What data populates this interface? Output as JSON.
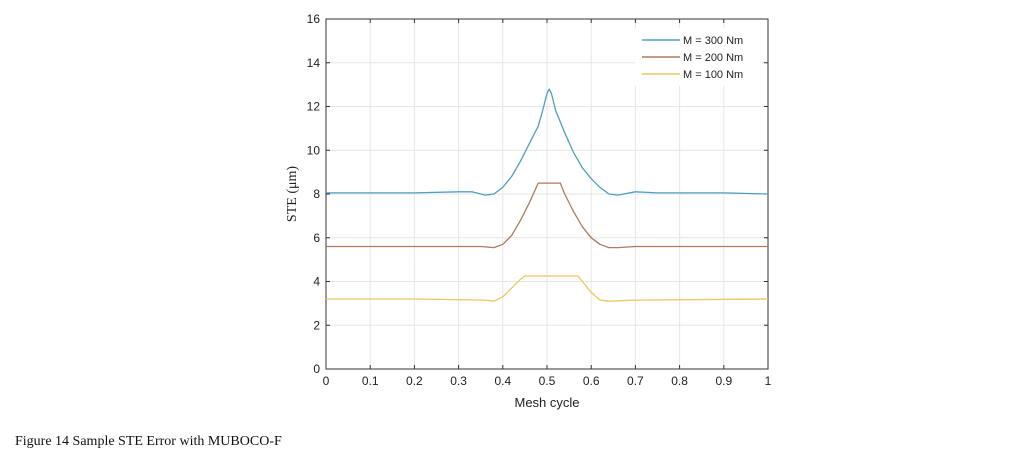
{
  "chart_data": {
    "type": "line",
    "title": "",
    "xlabel": "Mesh cycle",
    "ylabel": "STE (μm)",
    "xlim": [
      0,
      1
    ],
    "ylim": [
      0,
      16
    ],
    "xticks": [
      "0",
      "0.1",
      "0.2",
      "0.3",
      "0.4",
      "0.5",
      "0.6",
      "0.7",
      "0.8",
      "0.9",
      "1"
    ],
    "yticks": [
      "0",
      "2",
      "4",
      "6",
      "8",
      "10",
      "12",
      "14",
      "16"
    ],
    "grid": true,
    "legend_position": "top-right",
    "series": [
      {
        "name": "M = 300 Nm",
        "color": "#4f9fc0",
        "x": [
          0,
          0.1,
          0.2,
          0.3,
          0.33,
          0.36,
          0.38,
          0.4,
          0.42,
          0.44,
          0.46,
          0.48,
          0.49,
          0.5,
          0.505,
          0.51,
          0.52,
          0.54,
          0.56,
          0.58,
          0.6,
          0.62,
          0.64,
          0.66,
          0.7,
          0.75,
          0.9,
          1
        ],
        "y": [
          8.05,
          8.05,
          8.05,
          8.1,
          8.1,
          7.95,
          8.0,
          8.3,
          8.8,
          9.5,
          10.3,
          11.1,
          11.8,
          12.6,
          12.8,
          12.6,
          11.8,
          10.8,
          9.9,
          9.2,
          8.7,
          8.3,
          8.0,
          7.95,
          8.1,
          8.05,
          8.05,
          8.0
        ]
      },
      {
        "name": "M = 200 Nm",
        "color": "#b07a5c",
        "x": [
          0,
          0.2,
          0.35,
          0.38,
          0.4,
          0.42,
          0.44,
          0.46,
          0.48,
          0.53,
          0.54,
          0.56,
          0.58,
          0.6,
          0.62,
          0.64,
          0.66,
          0.7,
          1
        ],
        "y": [
          5.6,
          5.6,
          5.6,
          5.55,
          5.7,
          6.1,
          6.8,
          7.6,
          8.5,
          8.5,
          8.0,
          7.2,
          6.5,
          6.0,
          5.7,
          5.55,
          5.55,
          5.6,
          5.6
        ]
      },
      {
        "name": "M = 100 Nm",
        "color": "#e8c860",
        "x": [
          0,
          0.2,
          0.36,
          0.38,
          0.4,
          0.42,
          0.44,
          0.45,
          0.57,
          0.58,
          0.6,
          0.62,
          0.64,
          0.7,
          1
        ],
        "y": [
          3.2,
          3.2,
          3.15,
          3.1,
          3.3,
          3.7,
          4.1,
          4.25,
          4.25,
          4.0,
          3.5,
          3.15,
          3.1,
          3.15,
          3.2
        ]
      }
    ]
  },
  "caption": "Figure 14 Sample STE Error with MUBOCO-F"
}
